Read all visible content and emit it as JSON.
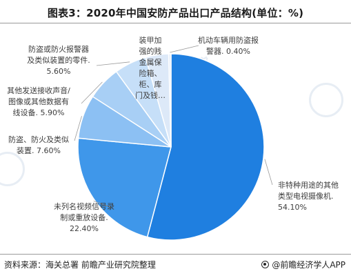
{
  "title": "图表3：2020年中国安防产品出口产品结构(单位：%)",
  "watermark": "前瞻产业研究院",
  "footer": {
    "source": "资料来源：海关总署 前瞻产业研究院整理",
    "brand": "@前瞻经济学人APP"
  },
  "colors": {
    "slice_main": "#1f7fe0",
    "slice_second": "#3f97ea",
    "slice_third": "#8cc0f3",
    "slice_fourth": "#a8cff5",
    "slice_fifth": "#c6dff8",
    "slice_sixth": "#dde9f8",
    "slice_seventh": "#e6eefa",
    "leader": "#9a9a9a"
  },
  "chart_data": {
    "type": "pie",
    "title": "图表3：2020年中国安防产品出口产品结构(单位：%)",
    "unit": "%",
    "slices": [
      {
        "lines": [
          "非特种用途的其他",
          "类型电视摄像机.",
          "54.10%"
        ],
        "value": 54.1
      },
      {
        "lines": [
          "未列名视频信号录",
          "制或重放设备.",
          "22.40%"
        ],
        "value": 22.4
      },
      {
        "lines": [
          "防盗、防火及类似",
          "装置. 7.60%"
        ],
        "value": 7.6
      },
      {
        "lines": [
          "其他发送接收声音/",
          "图像或其他数据有",
          "线设备. 5.90%"
        ],
        "value": 5.9
      },
      {
        "lines": [
          "防盗或防火报警器",
          "及类似装置的零件.",
          "5.60%"
        ],
        "value": 5.6
      },
      {
        "lines": [
          "装甲加",
          "强的贱",
          "金属保",
          "险箱、",
          "柜、库",
          "门及钱…"
        ],
        "value": 4.0
      },
      {
        "lines": [
          "机动车辆用防盗报",
          "警器. 0.40%"
        ],
        "value": 0.4
      }
    ]
  }
}
